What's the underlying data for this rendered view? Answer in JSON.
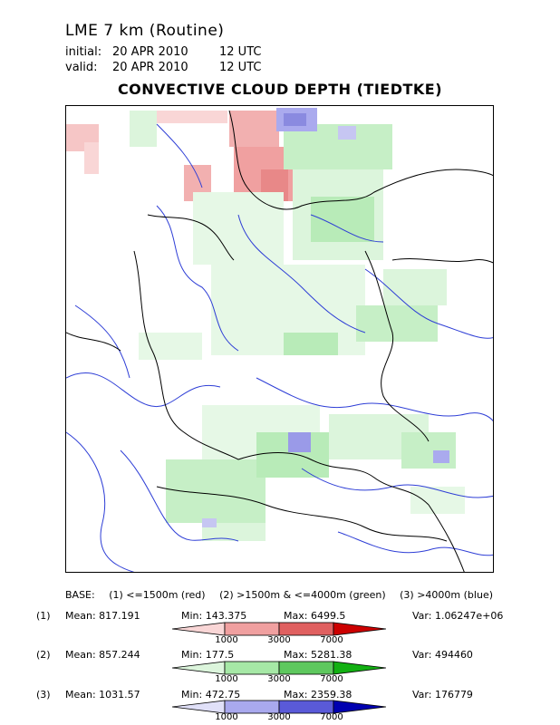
{
  "header": {
    "title": "LME 7 km (Routine)",
    "initial_label": "initial:",
    "initial_date": "20 APR 2010",
    "initial_time": "12 UTC",
    "valid_label": "valid:",
    "valid_date": "20 APR 2010",
    "valid_time": "12 UTC",
    "product": "CONVECTIVE CLOUD DEPTH (TIEDTKE)"
  },
  "base_legend": {
    "prefix": "BASE:",
    "item1": "(1) <=1500m (red)",
    "item2": "(2) >1500m & <=4000m (green)",
    "item3": "(3) >4000m (blue)"
  },
  "stats": [
    {
      "index": "(1)",
      "mean": "Mean: 817.191",
      "min": "Min: 143.375",
      "max": "Max: 6499.5",
      "var": "Var: 1.06247e+06",
      "colors": [
        "#f9d6d6",
        "#f0a0a0",
        "#e06060",
        "#cc0000"
      ]
    },
    {
      "index": "(2)",
      "mean": "Mean: 857.244",
      "min": "Min: 177.5",
      "max": "Max: 5281.38",
      "var": "Var: 494460",
      "colors": [
        "#dcf5dc",
        "#a6e8a6",
        "#5ec85e",
        "#12b012"
      ]
    },
    {
      "index": "(3)",
      "mean": "Mean: 1031.57",
      "min": "Min: 472.75",
      "max": "Max: 2359.38",
      "var": "Var: 176779",
      "colors": [
        "#e0e0f8",
        "#a9a9ee",
        "#5a5ad8",
        "#0000b0"
      ]
    }
  ],
  "scale_ticks": [
    "1000",
    "3000",
    "7000"
  ],
  "map_colors": {
    "river": "#2e3ed6",
    "border": "#000000",
    "red": "#f0a0a0",
    "green": "#a6e8a6",
    "blue": "#9a9ae8"
  }
}
